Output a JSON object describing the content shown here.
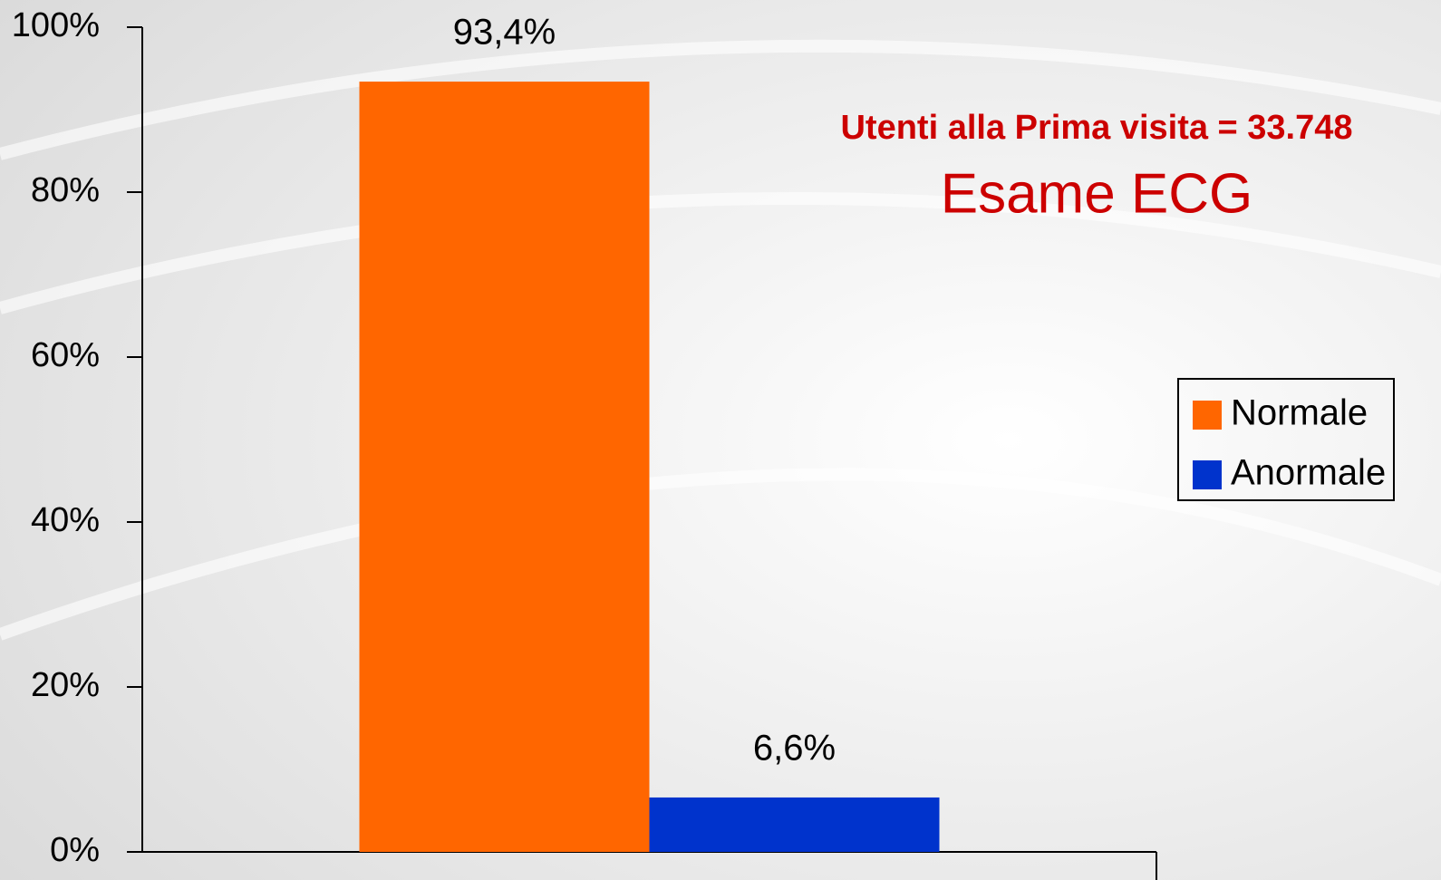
{
  "chart_data": {
    "type": "bar",
    "title": "Utenti alla Prima visita = 33.748",
    "subtitle": "Esame ECG",
    "categories": [
      null
    ],
    "series": [
      {
        "name": "Normale",
        "color": "#ff6600",
        "values": [
          93.4
        ],
        "value_labels": [
          "93,4%"
        ]
      },
      {
        "name": "Anormale",
        "color": "#0033cc",
        "values": [
          6.6
        ],
        "value_labels": [
          "6,6%"
        ]
      }
    ],
    "ylim": [
      0,
      100
    ],
    "yticks": [
      {
        "value": 0,
        "label": "0%"
      },
      {
        "value": 20,
        "label": "20%"
      },
      {
        "value": 40,
        "label": "40%"
      },
      {
        "value": 60,
        "label": "60%"
      },
      {
        "value": 80,
        "label": "80%"
      },
      {
        "value": 100,
        "label": "100%"
      }
    ],
    "legend": "right"
  }
}
